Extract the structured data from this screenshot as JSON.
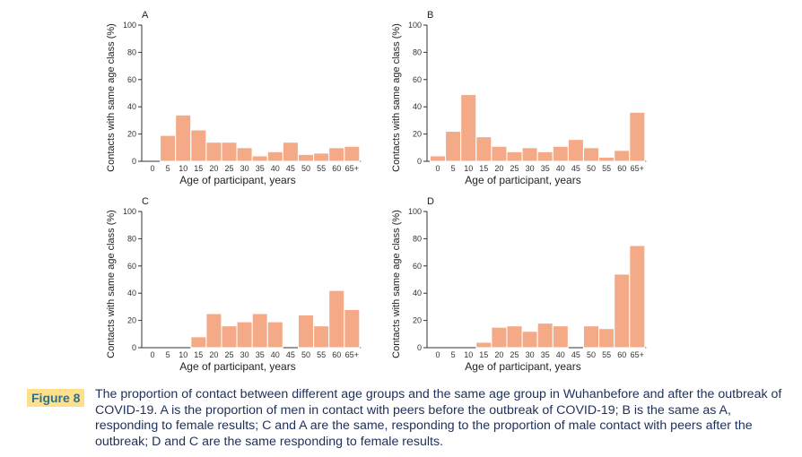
{
  "chart_data": [
    {
      "type": "bar",
      "panel": "A",
      "categories": [
        "0",
        "5",
        "10",
        "15",
        "20",
        "25",
        "30",
        "35",
        "40",
        "45",
        "50",
        "55",
        "60",
        "65+"
      ],
      "values": [
        0,
        19,
        34,
        23,
        14,
        14,
        10,
        4,
        7,
        14,
        5,
        6,
        10,
        11
      ],
      "xlabel": "Age of participant, years",
      "ylabel": "Contacts with same age class (%)",
      "ylim": [
        0,
        100
      ],
      "yticks": [
        0,
        20,
        40,
        60,
        80,
        100
      ]
    },
    {
      "type": "bar",
      "panel": "B",
      "categories": [
        "0",
        "5",
        "10",
        "15",
        "20",
        "25",
        "30",
        "35",
        "40",
        "45",
        "50",
        "55",
        "60",
        "65+"
      ],
      "values": [
        4,
        22,
        49,
        18,
        11,
        7,
        10,
        7,
        11,
        16,
        10,
        3,
        8,
        36
      ],
      "xlabel": "Age of participant, years",
      "ylabel": "Contacts with same age class (%)",
      "ylim": [
        0,
        100
      ],
      "yticks": [
        0,
        20,
        40,
        60,
        80,
        100
      ]
    },
    {
      "type": "bar",
      "panel": "C",
      "categories": [
        "0",
        "5",
        "10",
        "15",
        "20",
        "25",
        "30",
        "35",
        "40",
        "45",
        "50",
        "55",
        "60",
        "65+"
      ],
      "values": [
        0,
        0,
        0,
        8,
        25,
        16,
        19,
        25,
        19,
        0,
        24,
        16,
        42,
        28
      ],
      "xlabel": "Age of participant, years",
      "ylabel": "Contacts with same age class (%)",
      "ylim": [
        0,
        100
      ],
      "yticks": [
        0,
        20,
        40,
        60,
        80,
        100
      ]
    },
    {
      "type": "bar",
      "panel": "D",
      "categories": [
        "0",
        "5",
        "10",
        "15",
        "20",
        "25",
        "30",
        "35",
        "40",
        "45",
        "50",
        "55",
        "60",
        "65+"
      ],
      "values": [
        0,
        0,
        0,
        4,
        15,
        16,
        12,
        18,
        16,
        0,
        16,
        14,
        54,
        75
      ],
      "xlabel": "Age of participant, years",
      "ylabel": "Contacts with same age class (%)",
      "ylim": [
        0,
        100
      ],
      "yticks": [
        0,
        20,
        40,
        60,
        80,
        100
      ]
    }
  ],
  "caption": {
    "label": "Figure 8",
    "text": "The proportion of contact between different age groups and the same age group in Wuhanbefore and after the outbreak of COVID-19. A is the proportion of men in contact with peers before the outbreak of COVID-19; B is the same as A, responding to female results; C and A are the same, responding to the proportion of male contact with peers after the outbreak; D and C are the same responding to female results."
  },
  "colors": {
    "bar": "#f4aa87",
    "figure_label_bg": "#ffe08a",
    "figure_label_text": "#2f6f8a",
    "caption_text": "#1e2f5a"
  }
}
